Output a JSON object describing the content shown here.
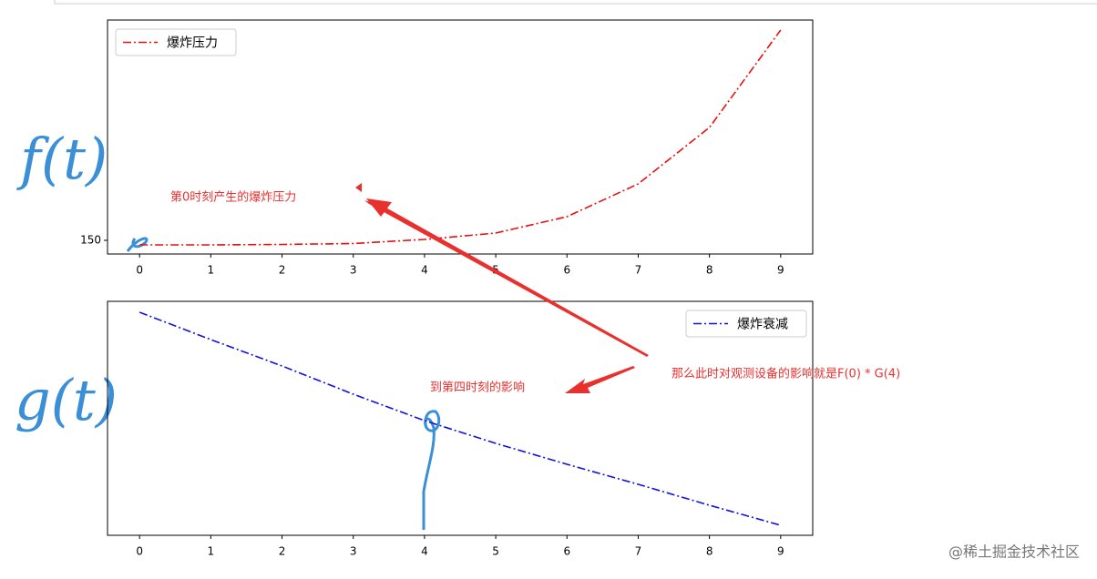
{
  "chart_data": [
    {
      "type": "line",
      "x": [
        0,
        1,
        2,
        3,
        4,
        5,
        6,
        7,
        8,
        9
      ],
      "xlim": [
        -0.45,
        9.45
      ],
      "xticks": [
        0,
        1,
        2,
        3,
        4,
        5,
        6,
        7,
        8,
        9
      ],
      "ylim": [
        0,
        2570
      ],
      "yticks": [
        150
      ],
      "legend": "upper left",
      "series": [
        {
          "name": "爆炸压力",
          "color": "#e8100f",
          "values": [
            100,
            100,
            105,
            115,
            160,
            230,
            410,
            770,
            1390,
            2460
          ]
        }
      ]
    },
    {
      "type": "line",
      "x": [
        0,
        1,
        2,
        3,
        4,
        5,
        6,
        7,
        8,
        9
      ],
      "xlim": [
        -0.45,
        9.45
      ],
      "xticks": [
        0,
        1,
        2,
        3,
        4,
        5,
        6,
        7,
        8,
        9
      ],
      "ylim": [
        0,
        257
      ],
      "yticks": [],
      "legend": "upper right",
      "series": [
        {
          "name": "爆炸衰减",
          "color": "#1010e0",
          "values": [
            245,
            215,
            186,
            155,
            126,
            101,
            78,
            56,
            33,
            11
          ]
        }
      ]
    }
  ],
  "annotations": {
    "top_note": "第0时刻产生的爆炸压力",
    "bottom_note": "到第四时刻的影响",
    "main_note": "那么此时对观测设备的影响就是F(0) * G(4)",
    "f_label": "f(t)",
    "g_label": "g(t)",
    "watermark": "@稀土掘金技术社区"
  }
}
